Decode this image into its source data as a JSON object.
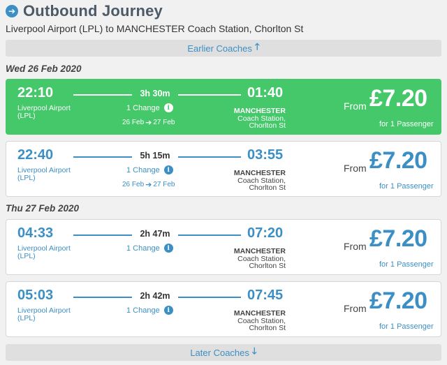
{
  "header": {
    "title": "Outbound Journey",
    "icon": "arrow-right-circle-icon",
    "route": "Liverpool Airport (LPL) to MANCHESTER Coach Station, Chorlton St"
  },
  "earlier": {
    "label": "Earlier Coaches",
    "icon": "arrow-up-icon"
  },
  "later": {
    "label": "Later Coaches",
    "icon": "arrow-down-icon"
  },
  "groups": [
    {
      "date": "Wed 26 Feb 2020"
    },
    {
      "date": "Thu 27 Feb 2020"
    }
  ],
  "colors": {
    "accent": "#3b8fc5",
    "selected": "#44c86a"
  },
  "journeys": [
    {
      "dep_time": "22:10",
      "dep_place_1": "Liverpool Airport",
      "dep_place_2": "(LPL)",
      "duration": "3h 30m",
      "changes": "1 Change",
      "date_from": "26 Feb",
      "date_to": "27 Feb",
      "arr_time": "01:40",
      "arr_city": "MANCHESTER",
      "arr_place_1": "Coach Station,",
      "arr_place_2": "Chorlton St",
      "from_label": "From",
      "price": "£7.20",
      "pax": "for 1 Passenger",
      "selected": true
    },
    {
      "dep_time": "22:40",
      "dep_place_1": "Liverpool Airport",
      "dep_place_2": "(LPL)",
      "duration": "5h 15m",
      "changes": "1 Change",
      "date_from": "26 Feb",
      "date_to": "27 Feb",
      "arr_time": "03:55",
      "arr_city": "MANCHESTER",
      "arr_place_1": "Coach Station,",
      "arr_place_2": "Chorlton St",
      "from_label": "From",
      "price": "£7.20",
      "pax": "for 1 Passenger",
      "selected": false
    },
    {
      "dep_time": "04:33",
      "dep_place_1": "Liverpool Airport",
      "dep_place_2": "(LPL)",
      "duration": "2h 47m",
      "changes": "1 Change",
      "arr_time": "07:20",
      "arr_city": "MANCHESTER",
      "arr_place_1": "Coach Station,",
      "arr_place_2": "Chorlton St",
      "from_label": "From",
      "price": "£7.20",
      "pax": "for 1 Passenger",
      "selected": false
    },
    {
      "dep_time": "05:03",
      "dep_place_1": "Liverpool Airport",
      "dep_place_2": "(LPL)",
      "duration": "2h 42m",
      "changes": "1 Change",
      "arr_time": "07:45",
      "arr_city": "MANCHESTER",
      "arr_place_1": "Coach Station,",
      "arr_place_2": "Chorlton St",
      "from_label": "From",
      "price": "£7.20",
      "pax": "for 1 Passenger",
      "selected": false
    }
  ]
}
